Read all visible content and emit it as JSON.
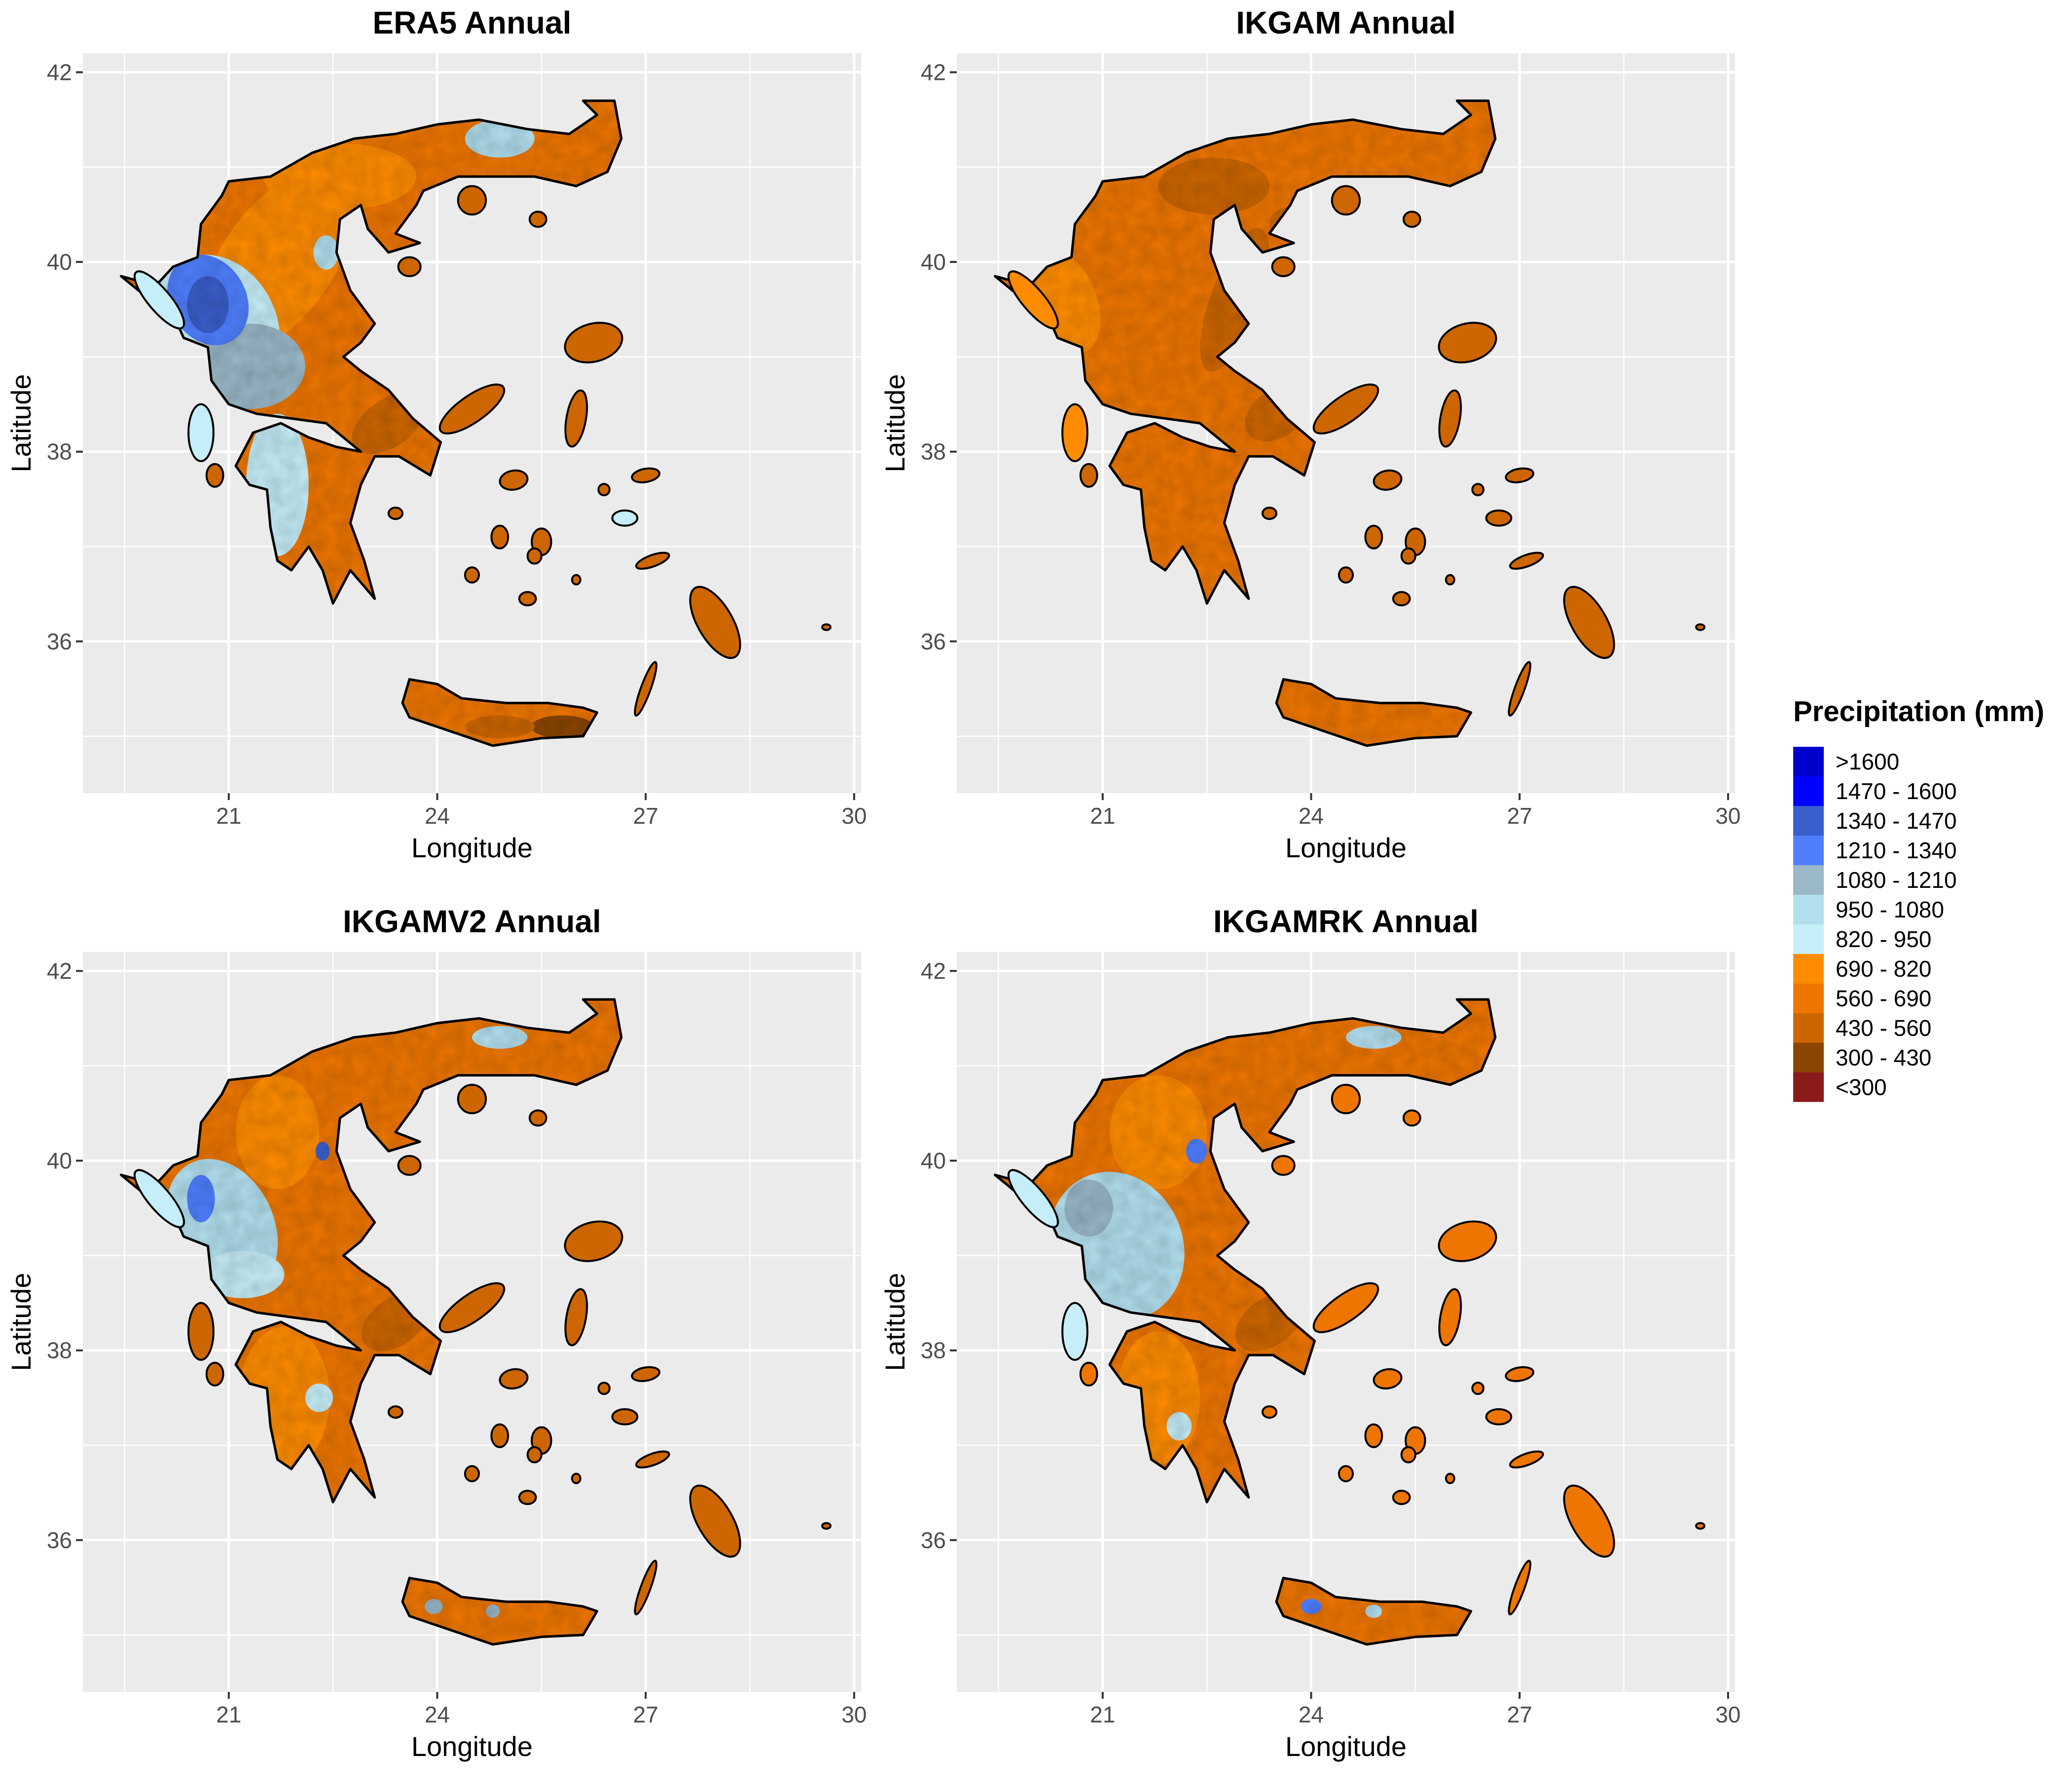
{
  "figure": {
    "panels": [
      {
        "title": "ERA5 Annual",
        "xlabel": "Longitude",
        "ylabel": "Latitude",
        "x_ticks": [
          21,
          24,
          27,
          30
        ],
        "y_ticks": [
          36,
          38,
          40,
          42
        ],
        "xlim": [
          18.9,
          30.1
        ],
        "ylim": [
          34.4,
          42.2
        ],
        "fill_scheme": "era5"
      },
      {
        "title": "IKGAM Annual",
        "xlabel": "Longitude",
        "ylabel": "Latitude",
        "x_ticks": [
          21,
          24,
          27,
          30
        ],
        "y_ticks": [
          36,
          38,
          40,
          42
        ],
        "xlim": [
          18.9,
          30.1
        ],
        "ylim": [
          34.4,
          42.2
        ],
        "fill_scheme": "ikgam"
      },
      {
        "title": "IKGAMV2 Annual",
        "xlabel": "Longitude",
        "ylabel": "Latitude",
        "x_ticks": [
          21,
          24,
          27,
          30
        ],
        "y_ticks": [
          36,
          38,
          40,
          42
        ],
        "xlim": [
          18.9,
          30.1
        ],
        "ylim": [
          34.4,
          42.2
        ],
        "fill_scheme": "ikgamv2"
      },
      {
        "title": "IKGAMRK Annual",
        "xlabel": "Longitude",
        "ylabel": "Latitude",
        "x_ticks": [
          21,
          24,
          27,
          30
        ],
        "y_ticks": [
          36,
          38,
          40,
          42
        ],
        "xlim": [
          18.9,
          30.1
        ],
        "ylim": [
          34.4,
          42.2
        ],
        "fill_scheme": "ikgamrk"
      }
    ],
    "legend": {
      "title": "Precipitation (mm)",
      "items": [
        {
          "label": ">1600",
          "color": "#0000CD"
        },
        {
          "label": "1470 - 1600",
          "color": "#0000FF"
        },
        {
          "label": "1340 - 1470",
          "color": "#3A5FCD"
        },
        {
          "label": "1210 - 1340",
          "color": "#4F7FFF"
        },
        {
          "label": "1080 - 1210",
          "color": "#9AB8C8"
        },
        {
          "label": "950 - 1080",
          "color": "#B2DFEE"
        },
        {
          "label": "820 - 950",
          "color": "#C6EEF8"
        },
        {
          "label": "690 - 820",
          "color": "#FF8C00"
        },
        {
          "label": "560 - 690",
          "color": "#EE7600"
        },
        {
          "label": "430 - 560",
          "color": "#CD6600"
        },
        {
          "label": "300 - 430",
          "color": "#8B4500"
        },
        {
          "label": "<300",
          "color": "#8B1A1A"
        }
      ]
    }
  }
}
